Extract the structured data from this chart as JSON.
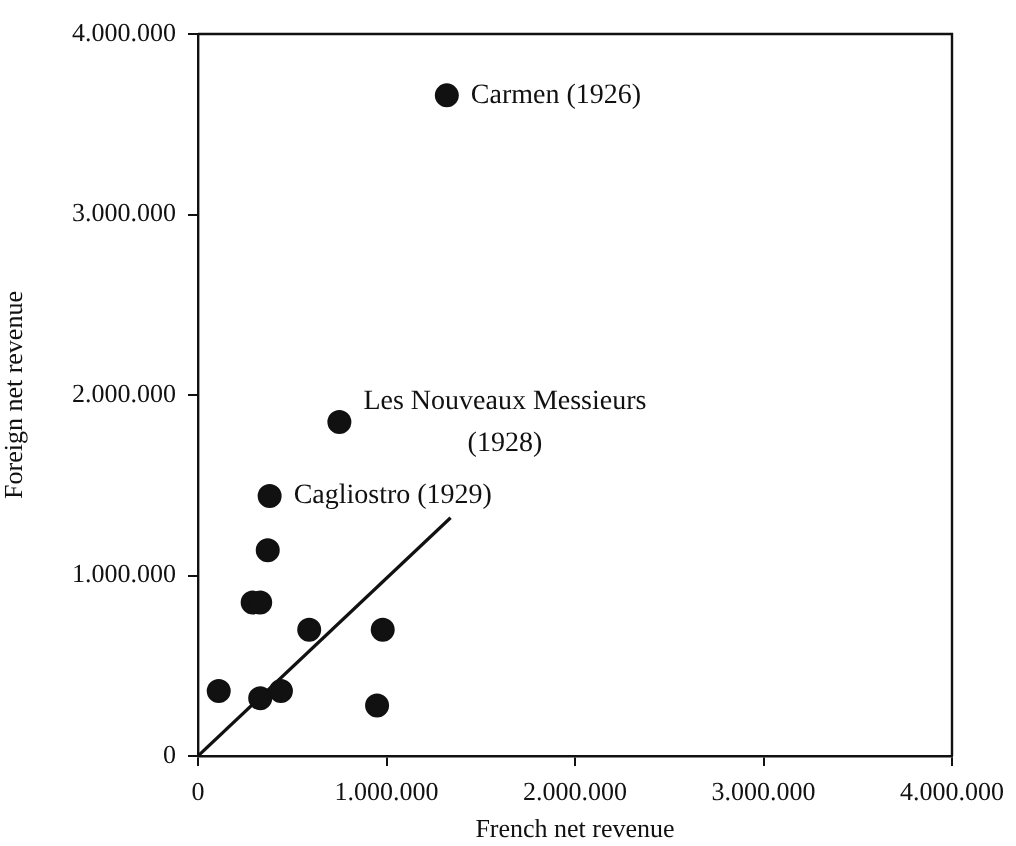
{
  "chart_data": {
    "type": "scatter",
    "xlabel": "French net revenue",
    "ylabel": "Foreign net revenue",
    "xlim": [
      0,
      4000000
    ],
    "ylim": [
      0,
      4000000
    ],
    "xticks": [
      0,
      {
        "value": 1000000,
        "label": "1.000.000"
      },
      {
        "value": 2000000,
        "label": "2.000.000"
      },
      {
        "value": 3000000,
        "label": "3.000.000"
      },
      {
        "value": 4000000,
        "label": "4.000.000"
      }
    ],
    "yticks": [
      0,
      {
        "value": 1000000,
        "label": "1.000.000"
      },
      {
        "value": 2000000,
        "label": "2.000.000"
      },
      {
        "value": 3000000,
        "label": "3.000.000"
      },
      {
        "value": 4000000,
        "label": "4.000.000"
      }
    ],
    "grid": false,
    "legend": false,
    "series": [
      {
        "marker": "circle",
        "color": "#111111",
        "x": [
          1320000,
          750000,
          380000,
          370000,
          290000,
          330000,
          110000,
          330000,
          440000,
          590000,
          980000,
          950000
        ],
        "values": [
          3660000,
          1850000,
          1440000,
          1140000,
          850000,
          850000,
          360000,
          320000,
          360000,
          700000,
          700000,
          280000
        ]
      },
      {
        "type": "line",
        "marker": "none",
        "color": "#111111",
        "x": [
          0,
          1340000
        ],
        "values": [
          0,
          1320000
        ]
      }
    ],
    "annotations": [
      {
        "text": "Carmen (1926)",
        "x": 1320000,
        "y": 3660000
      },
      {
        "text": "Les Nouveaux Messieurs (1928)",
        "x": 750000,
        "y": 1850000
      },
      {
        "text": "Cagliostro (1929)",
        "x": 380000,
        "y": 1440000
      }
    ]
  }
}
